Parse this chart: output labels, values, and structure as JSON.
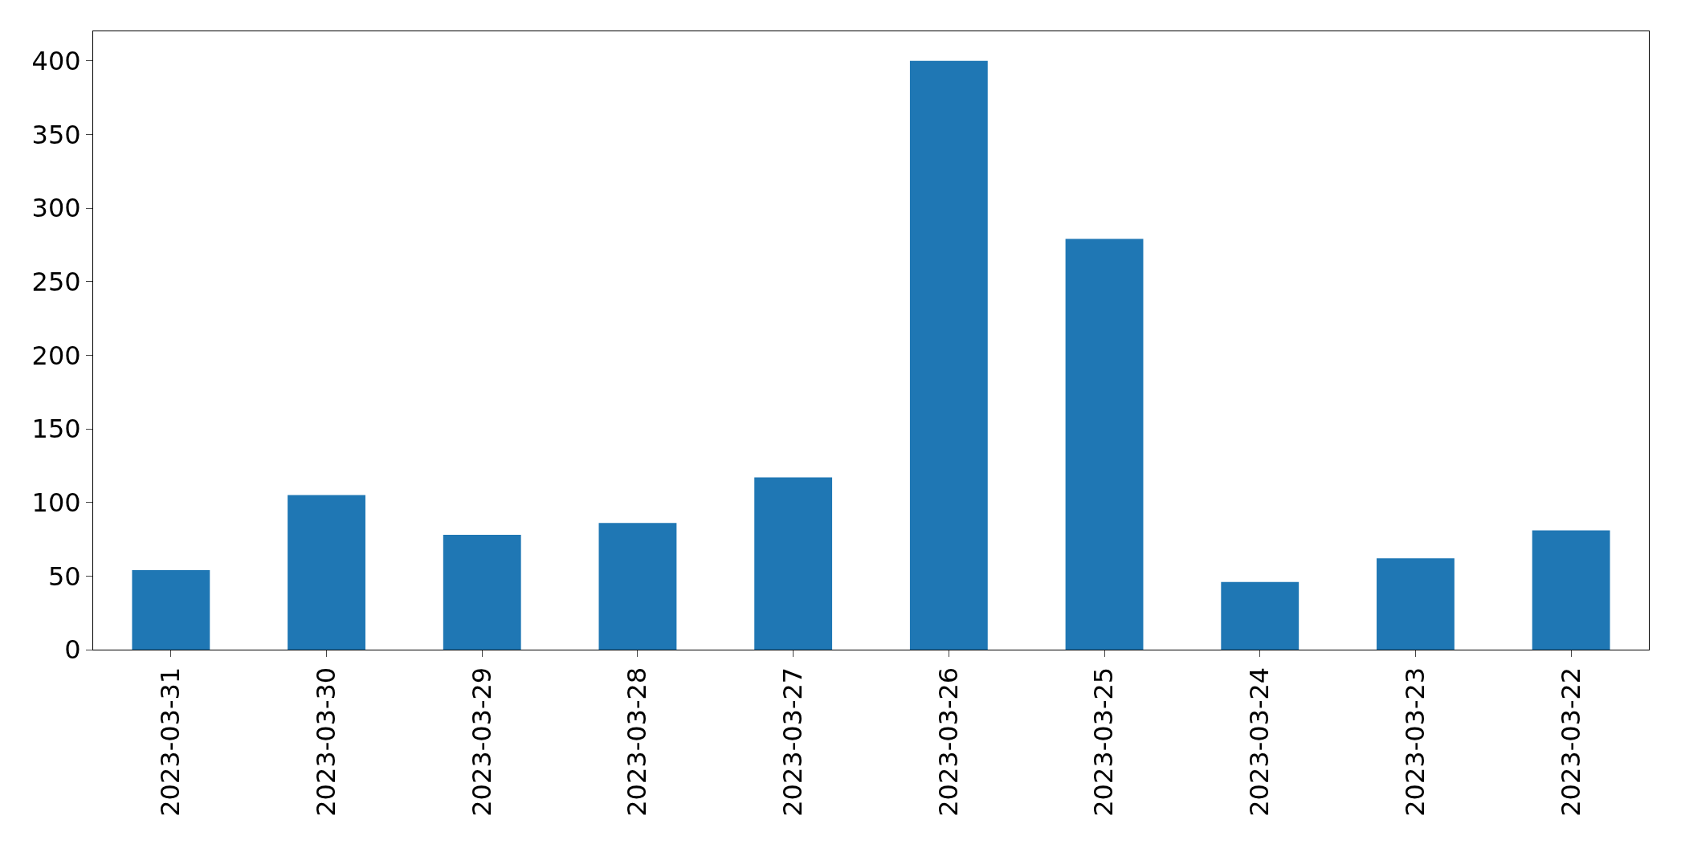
{
  "chart_data": {
    "type": "bar",
    "categories": [
      "2023-03-31",
      "2023-03-30",
      "2023-03-29",
      "2023-03-28",
      "2023-03-27",
      "2023-03-26",
      "2023-03-25",
      "2023-03-24",
      "2023-03-23",
      "2023-03-22"
    ],
    "values": [
      54,
      105,
      78,
      86,
      117,
      400,
      279,
      46,
      62,
      81
    ],
    "color": "#1f77b4",
    "ylim": [
      0,
      420
    ],
    "yticks": [
      0,
      50,
      100,
      150,
      200,
      250,
      300,
      350,
      400
    ]
  }
}
